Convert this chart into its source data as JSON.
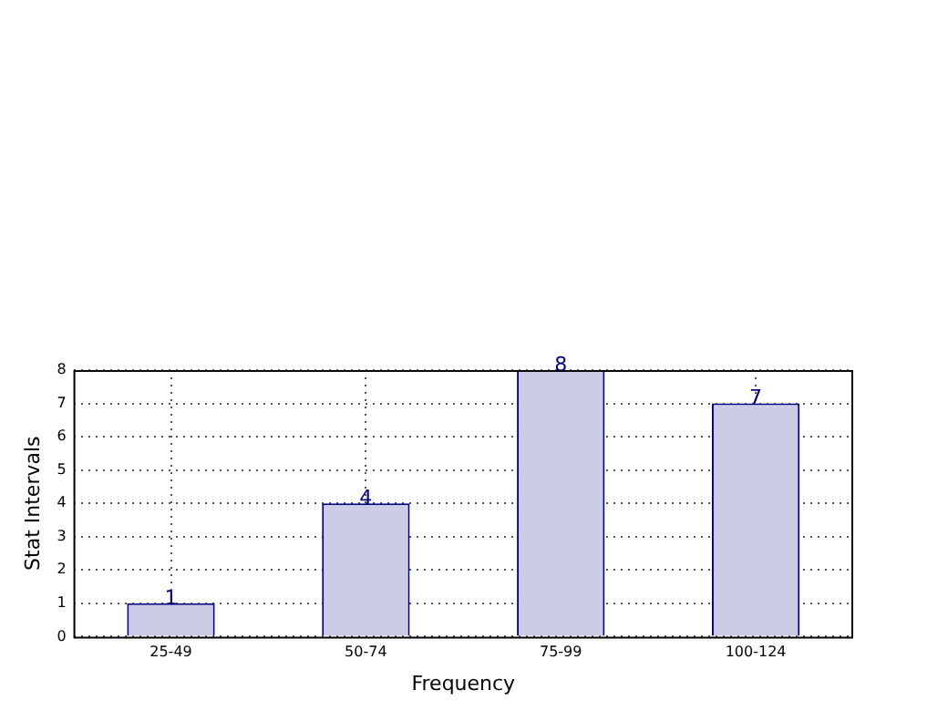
{
  "chart_data": {
    "type": "bar",
    "xlabel": "Frequency",
    "ylabel": "Stat Intervals",
    "categories": [
      "25-49",
      "50-74",
      "75-99",
      "100-124"
    ],
    "values": [
      1,
      4,
      8,
      7
    ],
    "color": "#cccce6",
    "ylim": [
      0,
      8
    ],
    "yticks": [
      0,
      1,
      2,
      3,
      4,
      5,
      6,
      7,
      8
    ],
    "grid": true,
    "line_style": "dotted",
    "data_labels": true,
    "legend": false
  }
}
